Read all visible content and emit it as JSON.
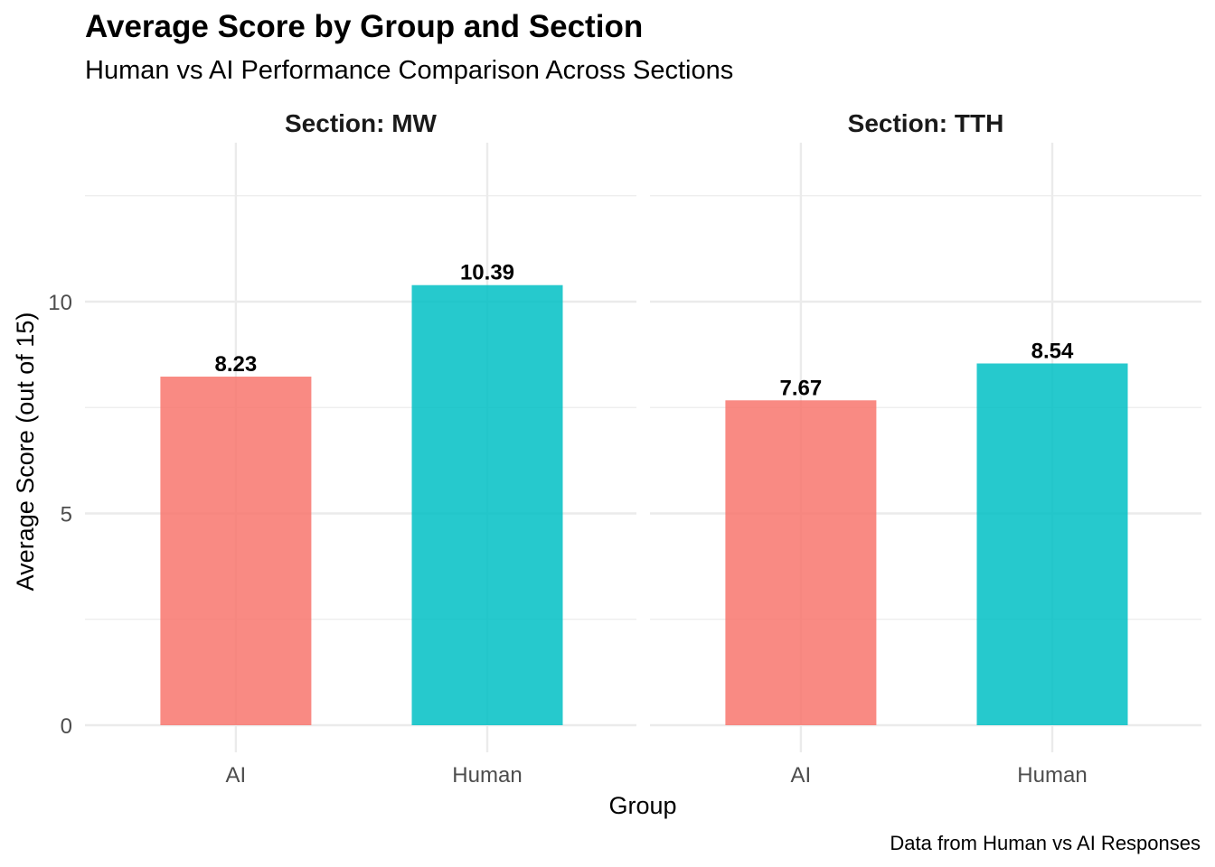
{
  "chart_data": {
    "type": "bar",
    "title": "Average Score by Group and Section",
    "subtitle": "Human vs AI Performance Comparison Across Sections",
    "xlabel": "Group",
    "ylabel": "Average Score (out of 15)",
    "caption": "Data from Human vs AI Responses",
    "ylim": [
      0,
      12.5
    ],
    "y_ticks": [
      0,
      5,
      10
    ],
    "y_tick_labels": [
      "0",
      "5",
      "10"
    ],
    "grid": true,
    "legend": "none",
    "categories": [
      "AI",
      "Human"
    ],
    "colors": {
      "AI": "#f8766d",
      "Human": "#00bfc4"
    },
    "facets": [
      {
        "label": "Section: MW",
        "bars": [
          {
            "category": "AI",
            "value": 8.23,
            "label": "8.23"
          },
          {
            "category": "Human",
            "value": 10.39,
            "label": "10.39"
          }
        ]
      },
      {
        "label": "Section: TTH",
        "bars": [
          {
            "category": "AI",
            "value": 7.67,
            "label": "7.67"
          },
          {
            "category": "Human",
            "value": 8.54,
            "label": "8.54"
          }
        ]
      }
    ]
  }
}
